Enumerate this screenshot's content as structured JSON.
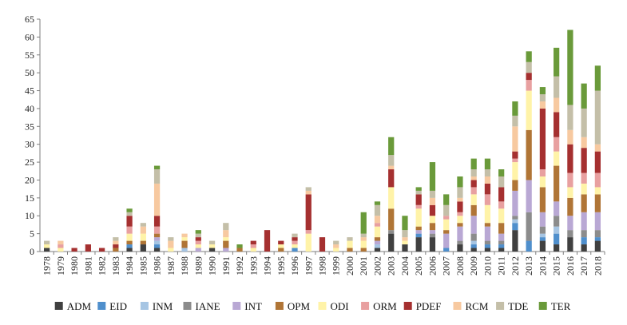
{
  "chart_data": {
    "type": "bar",
    "stacked": true,
    "title": "",
    "xlabel": "",
    "ylabel": "",
    "ylim": [
      0,
      65
    ],
    "yticks": [
      0,
      5,
      10,
      15,
      20,
      25,
      30,
      35,
      40,
      45,
      50,
      55,
      60,
      65
    ],
    "grid": false,
    "legend_position": "bottom",
    "categories": [
      "1978",
      "1979",
      "1980",
      "1981",
      "1982",
      "1983",
      "1984",
      "1985",
      "1986",
      "1987",
      "1988",
      "1989",
      "1990",
      "1991",
      "1992",
      "1993",
      "1994",
      "1995",
      "1996",
      "1997",
      "1998",
      "1999",
      "2000",
      "2001",
      "2002",
      "2003",
      "2004",
      "2005",
      "2006",
      "2007",
      "2008",
      "2009",
      "2010",
      "2011",
      "2012",
      "2013",
      "2014",
      "2015",
      "2016",
      "2017",
      "2018"
    ],
    "series": [
      {
        "name": "ADM",
        "color": "#404040",
        "values": [
          1,
          0,
          0,
          0,
          0,
          0,
          1,
          2,
          1,
          0,
          0,
          0,
          1,
          0,
          0,
          0,
          0,
          0,
          0,
          0,
          0,
          0,
          0,
          0,
          1,
          5,
          2,
          4,
          4,
          0,
          2,
          1,
          1,
          1,
          6,
          0,
          3,
          2,
          4,
          2,
          3
        ]
      },
      {
        "name": "EID",
        "color": "#4f8fcc",
        "values": [
          0,
          0,
          0,
          0,
          0,
          0,
          1,
          0,
          1,
          0,
          0,
          0,
          0,
          0,
          0,
          0,
          0,
          0,
          1,
          0,
          0,
          0,
          0,
          0,
          0,
          0,
          0,
          1,
          0,
          1,
          0,
          1,
          1,
          1,
          2,
          3,
          1,
          3,
          0,
          2,
          1
        ]
      },
      {
        "name": "INM",
        "color": "#a6c5e3",
        "values": [
          0,
          0,
          0,
          0,
          0,
          0,
          0,
          0,
          1,
          0,
          1,
          0,
          0,
          0,
          0,
          0,
          0,
          0,
          0,
          0,
          0,
          0,
          0,
          0,
          1,
          0,
          0,
          0,
          0,
          0,
          0,
          1,
          0,
          0,
          1,
          0,
          1,
          2,
          0,
          0,
          0
        ]
      },
      {
        "name": "IANE",
        "color": "#8c8c8c",
        "values": [
          0,
          0,
          0,
          0,
          0,
          0,
          0,
          0,
          0,
          0,
          0,
          0,
          0,
          0,
          0,
          0,
          0,
          0,
          0,
          0,
          0,
          0,
          0,
          0,
          0,
          1,
          0,
          0,
          1,
          0,
          1,
          2,
          1,
          1,
          1,
          8,
          2,
          3,
          2,
          2,
          2
        ]
      },
      {
        "name": "INT",
        "color": "#b9a8d4",
        "values": [
          0,
          0,
          0,
          0,
          0,
          0,
          0,
          0,
          1,
          0,
          0,
          1,
          0,
          1,
          0,
          0,
          0,
          0,
          0,
          0,
          0,
          0,
          0,
          0,
          1,
          0,
          0,
          1,
          1,
          4,
          4,
          5,
          4,
          2,
          7,
          9,
          4,
          4,
          4,
          5,
          5
        ]
      },
      {
        "name": "OPM",
        "color": "#b07536",
        "values": [
          0,
          0,
          0,
          0,
          0,
          1,
          1,
          1,
          1,
          0,
          2,
          0,
          0,
          2,
          1,
          0,
          0,
          1,
          0,
          0,
          0,
          0,
          1,
          1,
          1,
          6,
          0,
          1,
          2,
          1,
          1,
          3,
          1,
          3,
          3,
          14,
          7,
          10,
          5,
          5,
          5
        ]
      },
      {
        "name": "ODI",
        "color": "#fff3a8",
        "values": [
          1,
          1,
          0,
          0,
          0,
          0,
          2,
          2,
          0,
          1,
          1,
          1,
          1,
          1,
          0,
          1,
          0,
          1,
          1,
          5,
          0,
          1,
          2,
          2,
          3,
          6,
          1,
          5,
          2,
          3,
          2,
          3,
          5,
          4,
          5,
          11,
          3,
          4,
          3,
          3,
          2
        ]
      },
      {
        "name": "ORM",
        "color": "#e8a0a0",
        "values": [
          0,
          1,
          0,
          0,
          0,
          0,
          2,
          0,
          2,
          0,
          0,
          1,
          0,
          0,
          0,
          1,
          0,
          0,
          1,
          1,
          0,
          0,
          0,
          0,
          1,
          0,
          0,
          1,
          0,
          1,
          1,
          2,
          3,
          2,
          1,
          3,
          2,
          4,
          4,
          3,
          4
        ]
      },
      {
        "name": "PDEF",
        "color": "#a53030",
        "values": [
          0,
          0,
          1,
          2,
          1,
          1,
          3,
          0,
          3,
          0,
          0,
          1,
          0,
          0,
          0,
          1,
          6,
          1,
          1,
          10,
          4,
          0,
          0,
          0,
          0,
          5,
          0,
          3,
          3,
          0,
          3,
          2,
          3,
          4,
          2,
          2,
          17,
          7,
          8,
          7,
          6
        ]
      },
      {
        "name": "RCM",
        "color": "#f7c9a0",
        "values": [
          0,
          1,
          0,
          0,
          0,
          1,
          0,
          2,
          9,
          2,
          1,
          0,
          0,
          2,
          0,
          0,
          0,
          0,
          0,
          1,
          0,
          1,
          0,
          1,
          2,
          1,
          1,
          0,
          2,
          0,
          1,
          1,
          2,
          0,
          7,
          0,
          2,
          4,
          4,
          3,
          2
        ]
      },
      {
        "name": "TDE",
        "color": "#c4bfa8",
        "values": [
          1,
          0,
          0,
          0,
          0,
          1,
          1,
          1,
          4,
          1,
          0,
          1,
          1,
          2,
          0,
          0,
          0,
          0,
          1,
          1,
          0,
          1,
          1,
          1,
          3,
          3,
          2,
          1,
          2,
          3,
          3,
          2,
          2,
          3,
          3,
          3,
          2,
          6,
          7,
          8,
          15
        ]
      },
      {
        "name": "TER",
        "color": "#6a9a3a",
        "values": [
          0,
          0,
          0,
          0,
          0,
          0,
          1,
          0,
          1,
          0,
          0,
          1,
          0,
          0,
          1,
          0,
          0,
          0,
          0,
          0,
          0,
          0,
          0,
          6,
          1,
          5,
          4,
          1,
          8,
          3,
          3,
          3,
          3,
          2,
          4,
          3,
          2,
          8,
          21,
          7,
          7
        ]
      }
    ]
  }
}
